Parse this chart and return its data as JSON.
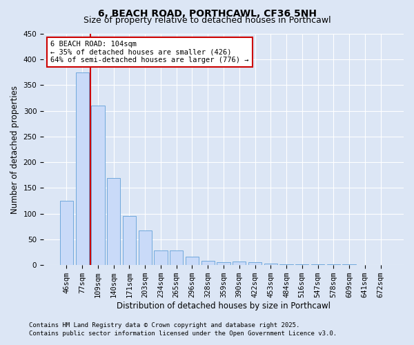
{
  "title_line1": "6, BEACH ROAD, PORTHCAWL, CF36 5NH",
  "title_line2": "Size of property relative to detached houses in Porthcawl",
  "xlabel": "Distribution of detached houses by size in Porthcawl",
  "ylabel": "Number of detached properties",
  "categories": [
    "46sqm",
    "77sqm",
    "109sqm",
    "140sqm",
    "171sqm",
    "203sqm",
    "234sqm",
    "265sqm",
    "296sqm",
    "328sqm",
    "359sqm",
    "390sqm",
    "422sqm",
    "453sqm",
    "484sqm",
    "516sqm",
    "547sqm",
    "578sqm",
    "609sqm",
    "641sqm",
    "672sqm"
  ],
  "values": [
    125,
    375,
    310,
    170,
    95,
    68,
    28,
    28,
    17,
    8,
    5,
    7,
    5,
    3,
    2,
    1,
    1,
    1,
    1,
    0,
    0
  ],
  "bar_color": "#c9daf8",
  "bar_edge_color": "#6fa8dc",
  "red_line_x": 1.5,
  "annotation_text": "6 BEACH ROAD: 104sqm\n← 35% of detached houses are smaller (426)\n64% of semi-detached houses are larger (776) →",
  "annotation_box_color": "#ffffff",
  "annotation_border_color": "#cc0000",
  "ylim": [
    0,
    450
  ],
  "yticks": [
    0,
    50,
    100,
    150,
    200,
    250,
    300,
    350,
    400,
    450
  ],
  "footer_line1": "Contains HM Land Registry data © Crown copyright and database right 2025.",
  "footer_line2": "Contains public sector information licensed under the Open Government Licence v3.0.",
  "background_color": "#dce6f5",
  "plot_bg_color": "#dce6f5",
  "grid_color": "#ffffff",
  "title_fontsize": 10,
  "subtitle_fontsize": 9,
  "axis_label_fontsize": 8.5,
  "tick_fontsize": 7.5,
  "annotation_fontsize": 7.5,
  "footer_fontsize": 6.5
}
